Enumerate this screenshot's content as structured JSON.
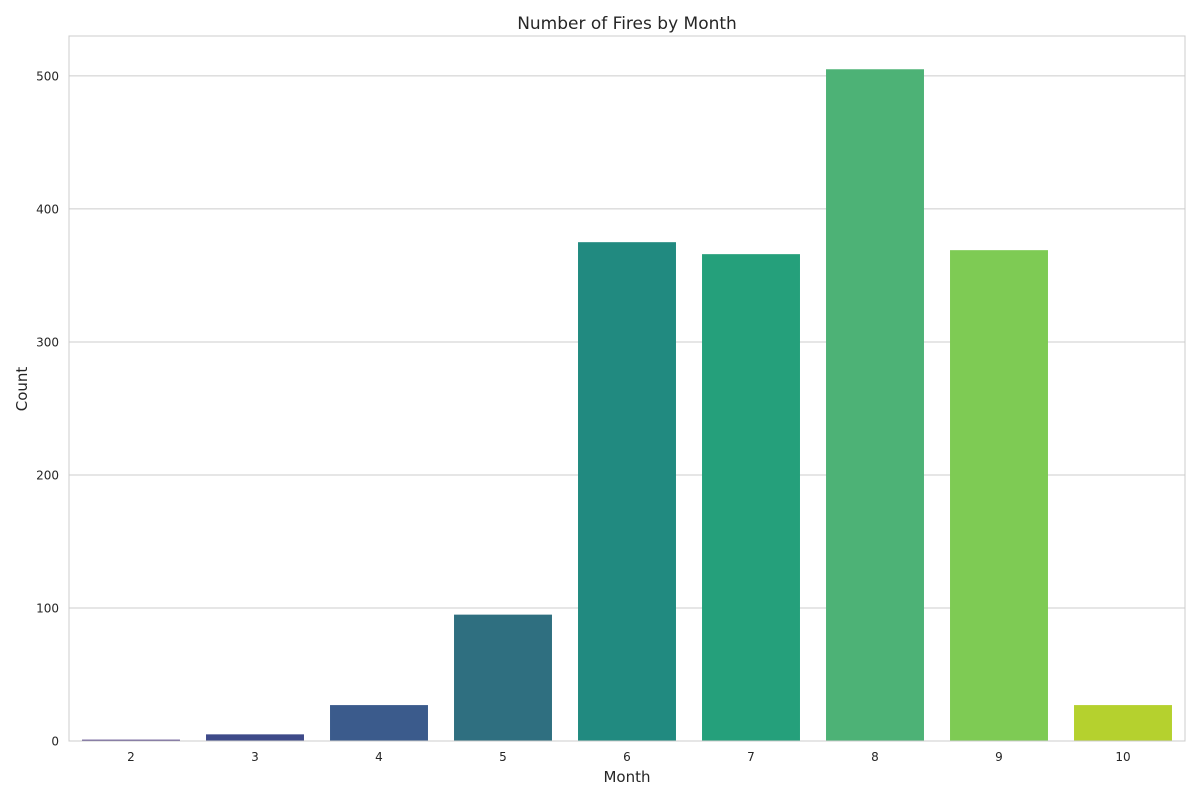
{
  "chart_data": {
    "type": "bar",
    "title": "Number of Fires by Month",
    "xlabel": "Month",
    "ylabel": "Count",
    "categories": [
      "2",
      "3",
      "4",
      "5",
      "6",
      "7",
      "8",
      "9",
      "10"
    ],
    "values": [
      1,
      5,
      27,
      95,
      375,
      366,
      505,
      369,
      27
    ],
    "ylim": [
      0,
      530
    ],
    "yticks": [
      0,
      100,
      200,
      300,
      400,
      500
    ],
    "grid": true,
    "colors": [
      "#46327e",
      "#3e4a89",
      "#3b5b8c",
      "#2f6f80",
      "#218a80",
      "#25a07b",
      "#4db276",
      "#7ecb54",
      "#b5d12e"
    ]
  }
}
